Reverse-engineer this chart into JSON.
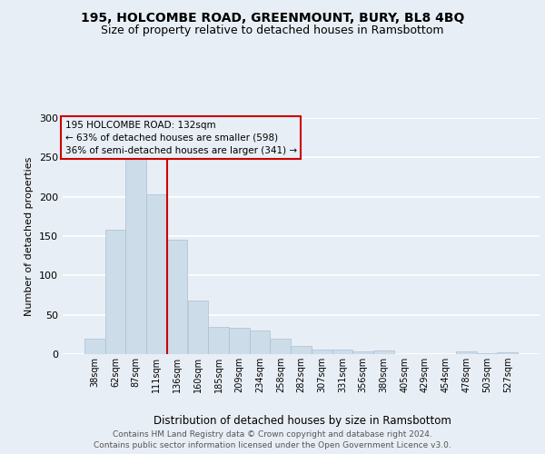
{
  "title1": "195, HOLCOMBE ROAD, GREENMOUNT, BURY, BL8 4BQ",
  "title2": "Size of property relative to detached houses in Ramsbottom",
  "xlabel": "Distribution of detached houses by size in Ramsbottom",
  "ylabel": "Number of detached properties",
  "annotation_line1": "195 HOLCOMBE ROAD: 132sqm",
  "annotation_line2": "← 63% of detached houses are smaller (598)",
  "annotation_line3": "36% of semi-detached houses are larger (341) →",
  "footer1": "Contains HM Land Registry data © Crown copyright and database right 2024.",
  "footer2": "Contains public sector information licensed under the Open Government Licence v3.0.",
  "bar_labels": [
    "38sqm",
    "62sqm",
    "87sqm",
    "111sqm",
    "136sqm",
    "160sqm",
    "185sqm",
    "209sqm",
    "234sqm",
    "258sqm",
    "282sqm",
    "307sqm",
    "331sqm",
    "356sqm",
    "380sqm",
    "405sqm",
    "429sqm",
    "454sqm",
    "478sqm",
    "503sqm",
    "527sqm"
  ],
  "bar_values": [
    20,
    158,
    250,
    203,
    145,
    68,
    35,
    33,
    30,
    20,
    10,
    6,
    6,
    3,
    5,
    0,
    0,
    0,
    3,
    1,
    2
  ],
  "bar_color": "#ccdce8",
  "bar_edgecolor": "#aac0d4",
  "vline_x": 3.5,
  "vline_color": "#cc0000",
  "ylim": [
    0,
    300
  ],
  "yticks": [
    0,
    50,
    100,
    150,
    200,
    250,
    300
  ],
  "background_color": "#e8eef5",
  "grid_color": "#ffffff",
  "title_fontsize": 10,
  "subtitle_fontsize": 9,
  "footer_fontsize": 6.5,
  "ylabel_fontsize": 8,
  "xlabel_fontsize": 8.5,
  "annot_fontsize": 7.5
}
